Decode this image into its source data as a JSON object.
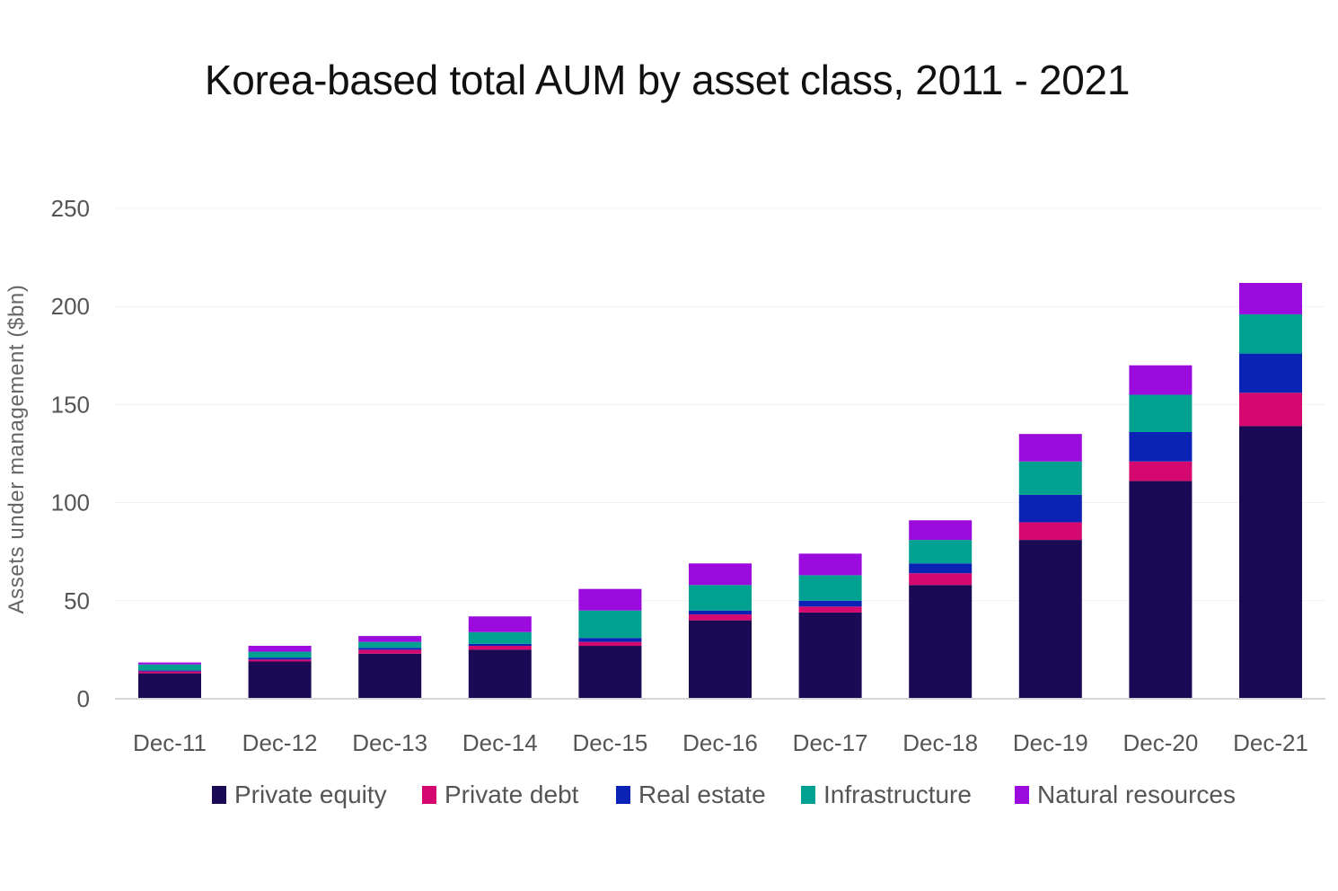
{
  "chart_data": {
    "type": "bar",
    "stacked": true,
    "title": "Korea-based total AUM by asset class, 2011 - 2021",
    "xlabel": "",
    "ylabel": "Assets under management ($bn)",
    "ylim": [
      0,
      250
    ],
    "yticks": [
      0,
      50,
      100,
      150,
      200,
      250
    ],
    "grid": true,
    "legend_position": "bottom",
    "categories": [
      "Dec-11",
      "Dec-12",
      "Dec-13",
      "Dec-14",
      "Dec-15",
      "Dec-16",
      "Dec-17",
      "Dec-18",
      "Dec-19",
      "Dec-20",
      "Dec-21"
    ],
    "series": [
      {
        "name": "Private equity",
        "color": "#1a0a55",
        "values": [
          13,
          19,
          23,
          25,
          27,
          40,
          44,
          58,
          81,
          111,
          139
        ]
      },
      {
        "name": "Private debt",
        "color": "#d4086e",
        "values": [
          1,
          1,
          2,
          2,
          2,
          3,
          3,
          6,
          9,
          10,
          17
        ]
      },
      {
        "name": "Real estate",
        "color": "#0a23b4",
        "values": [
          0.5,
          1,
          1,
          1,
          2,
          2,
          3,
          5,
          14,
          15,
          20
        ]
      },
      {
        "name": "Infrastructure",
        "color": "#00a191",
        "values": [
          3,
          3,
          3,
          6,
          14,
          13,
          13,
          12,
          17,
          19,
          20
        ]
      },
      {
        "name": "Natural resources",
        "color": "#9b0bdd",
        "values": [
          1,
          3,
          3,
          8,
          11,
          11,
          11,
          10,
          14,
          15,
          16
        ]
      }
    ]
  }
}
